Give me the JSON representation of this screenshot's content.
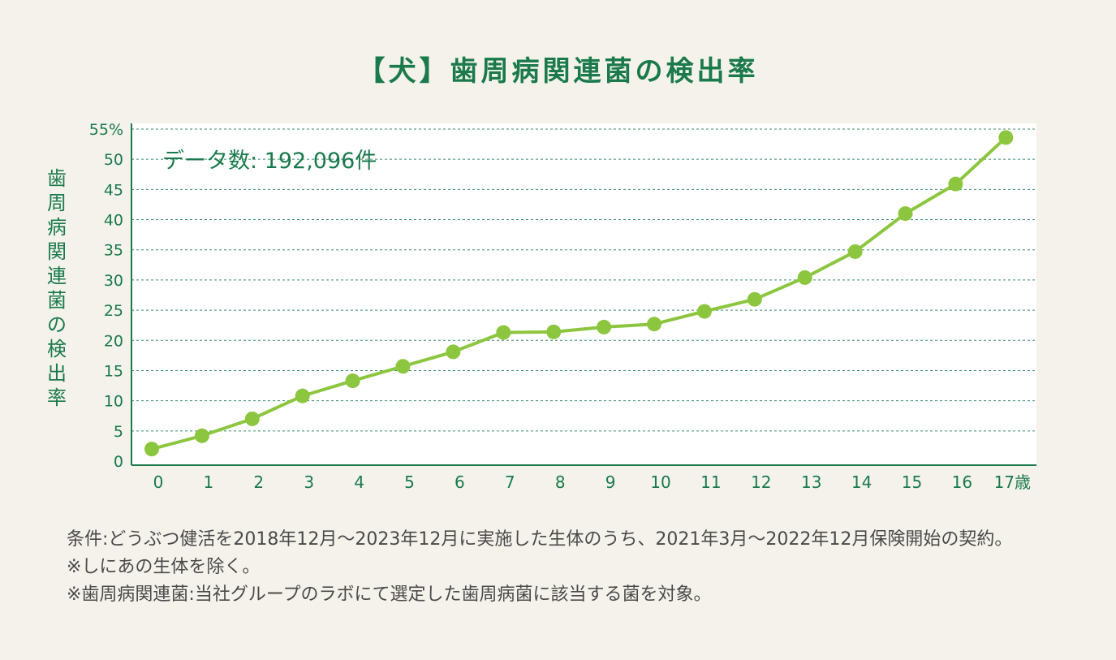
{
  "chart_data": {
    "type": "line",
    "title": "【犬】歯周病関連菌の検出率",
    "ylabel": "歯周病関連菌の検出率",
    "xlabel": "",
    "annotation": "データ数: 192,096件",
    "categories": [
      "0",
      "1",
      "2",
      "3",
      "4",
      "5",
      "6",
      "7",
      "8",
      "9",
      "10",
      "11",
      "12",
      "13",
      "14",
      "15",
      "16",
      "17歳"
    ],
    "y_ticks": [
      "0",
      "5",
      "10",
      "15",
      "20",
      "25",
      "30",
      "35",
      "40",
      "45",
      "50",
      "55%"
    ],
    "ylim": [
      0,
      55
    ],
    "grid": true,
    "series": [
      {
        "values": [
          2.0,
          4.2,
          7.0,
          10.8,
          13.3,
          15.7,
          18.1,
          21.3,
          21.4,
          22.2,
          22.7,
          24.8,
          26.8,
          30.4,
          34.7,
          41.0,
          45.9,
          53.6
        ],
        "color": "#8cc63f"
      }
    ],
    "colors": {
      "line": "#8cc63f",
      "axis": "#1a7a4c",
      "grid": "#1a7a4c",
      "plot_bg": "#ffffff",
      "page_bg": "#f4f2eb"
    }
  },
  "footnotes": [
    "条件:どうぶつ健活を2018年12月～2023年12月に実施した生体のうち、2021年3月～2022年12月保険開始の契約。",
    "※しにあの生体を除く。",
    "※歯周病関連菌:当社グループのラボにて選定した歯周病菌に該当する菌を対象。"
  ]
}
